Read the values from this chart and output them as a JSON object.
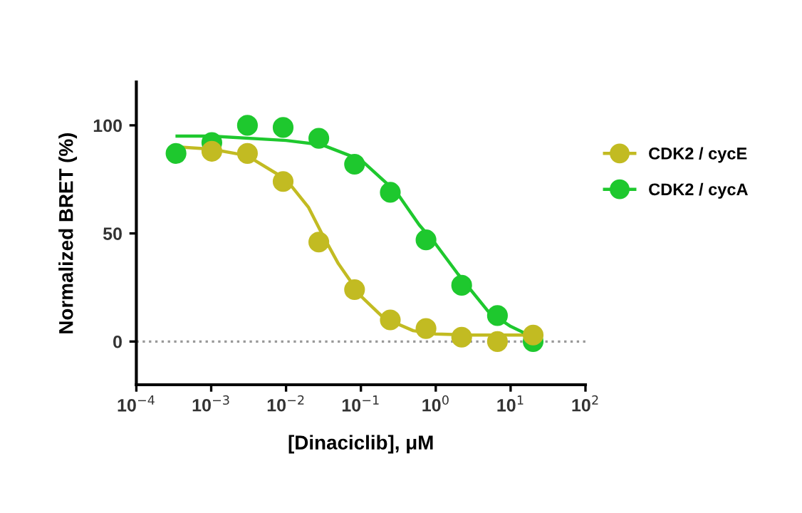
{
  "chart_data": {
    "type": "scatter",
    "xlabel": "[Dinaciclib], μM",
    "ylabel": "Normalized BRET (%)",
    "log": "x",
    "xlim": [
      0.0001,
      100
    ],
    "ylim": [
      -20,
      120
    ],
    "xticks": [
      {
        "value": 0.0001,
        "label": "10$^{−4}$"
      },
      {
        "value": 0.001,
        "label": "10$^{−3}$"
      },
      {
        "value": 0.01,
        "label": "10$^{−2}$"
      },
      {
        "value": 0.1,
        "label": "10$^{−1}$"
      },
      {
        "value": 1,
        "label": "10$^{0}$"
      },
      {
        "value": 10,
        "label": "10$^{1}$"
      },
      {
        "value": 100,
        "label": "10$^{2}$"
      }
    ],
    "yticks": [
      0,
      50,
      100
    ],
    "grid": false,
    "legend": "right",
    "marker": "circle",
    "x": [
      0.000339,
      0.00102,
      0.00305,
      0.00914,
      0.0274,
      0.0823,
      0.247,
      0.741,
      2.22,
      6.67,
      20
    ],
    "ref_lines": [
      {
        "axis": "y",
        "value": 0,
        "color": "#999999",
        "line_style": "dotted"
      }
    ],
    "series": [
      {
        "name": "CDK2 / cycE",
        "color": "#c2bb22",
        "values": [
          null,
          88,
          87,
          74,
          46,
          24,
          10,
          6,
          2,
          0,
          3
        ]
      },
      {
        "name": "CDK2 / cycA",
        "color": "#1ec82e",
        "values": [
          87,
          92,
          100,
          99,
          94,
          82,
          69,
          47,
          26,
          12,
          0
        ]
      },
      {
        "type": "line",
        "marker": "none",
        "color": "#c2bb22",
        "x": [
          0.00035,
          0.001,
          0.003,
          0.01,
          0.02,
          0.03,
          0.05,
          0.1,
          0.2,
          0.5,
          1,
          3,
          20
        ],
        "values": [
          90,
          89,
          86,
          75,
          62,
          50,
          36,
          21,
          11,
          5,
          3.5,
          3,
          3
        ]
      },
      {
        "type": "line",
        "marker": "none",
        "color": "#1ec82e",
        "x": [
          0.00035,
          0.001,
          0.01,
          0.03,
          0.1,
          0.3,
          0.6,
          1,
          2,
          5,
          10,
          20
        ],
        "values": [
          95,
          95,
          93,
          91,
          84,
          69,
          54,
          45,
          31,
          14,
          7,
          2
        ]
      }
    ]
  }
}
